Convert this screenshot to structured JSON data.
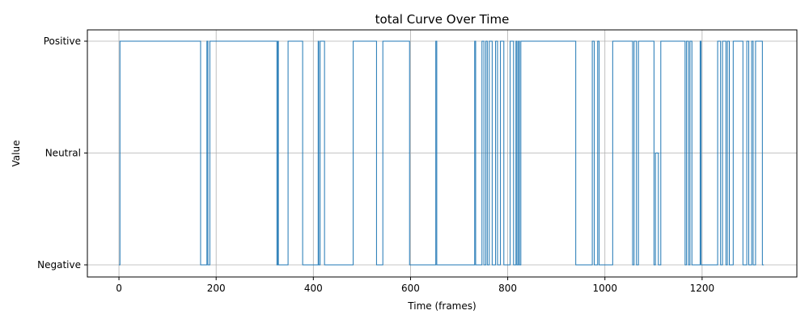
{
  "chart_data": {
    "type": "line",
    "title": "total Curve Over Time",
    "xlabel": "Time (frames)",
    "ylabel": "Value",
    "xlim": [
      -65,
      1395
    ],
    "x_ticks": [
      0,
      200,
      400,
      600,
      800,
      1000,
      1200
    ],
    "y_categories": [
      "Negative",
      "Neutral",
      "Positive"
    ],
    "grid": true,
    "line_color": "#1f77b4",
    "series": [
      {
        "values_encoding": "step segments: [start_frame, end_frame, category_index] where 0=Negative, 1=Neutral, 2=Positive",
        "segments": [
          [
            0,
            2,
            0
          ],
          [
            2,
            168,
            2
          ],
          [
            168,
            181,
            0
          ],
          [
            181,
            183,
            2
          ],
          [
            183,
            187,
            0
          ],
          [
            187,
            325,
            2
          ],
          [
            325,
            327,
            0
          ],
          [
            327,
            328,
            2
          ],
          [
            328,
            348,
            0
          ],
          [
            348,
            378,
            2
          ],
          [
            378,
            410,
            0
          ],
          [
            410,
            411,
            2
          ],
          [
            411,
            414,
            0
          ],
          [
            414,
            423,
            2
          ],
          [
            423,
            482,
            0
          ],
          [
            482,
            530,
            2
          ],
          [
            530,
            543,
            0
          ],
          [
            543,
            598,
            2
          ],
          [
            598,
            652,
            0
          ],
          [
            652,
            654,
            2
          ],
          [
            654,
            732,
            0
          ],
          [
            732,
            734,
            2
          ],
          [
            734,
            747,
            0
          ],
          [
            747,
            751,
            2
          ],
          [
            751,
            755,
            0
          ],
          [
            755,
            758,
            2
          ],
          [
            758,
            762,
            0
          ],
          [
            762,
            768,
            2
          ],
          [
            768,
            775,
            0
          ],
          [
            775,
            779,
            2
          ],
          [
            779,
            785,
            0
          ],
          [
            785,
            792,
            2
          ],
          [
            792,
            805,
            0
          ],
          [
            805,
            812,
            2
          ],
          [
            812,
            817,
            0
          ],
          [
            817,
            819,
            2
          ],
          [
            819,
            822,
            0
          ],
          [
            822,
            824,
            2
          ],
          [
            824,
            827,
            0
          ],
          [
            827,
            940,
            2
          ],
          [
            940,
            974,
            0
          ],
          [
            974,
            978,
            2
          ],
          [
            978,
            985,
            0
          ],
          [
            985,
            988,
            2
          ],
          [
            988,
            1016,
            0
          ],
          [
            1016,
            1057,
            2
          ],
          [
            1057,
            1060,
            0
          ],
          [
            1060,
            1065,
            2
          ],
          [
            1065,
            1069,
            0
          ],
          [
            1069,
            1101,
            2
          ],
          [
            1101,
            1104,
            0
          ],
          [
            1104,
            1110,
            1
          ],
          [
            1110,
            1115,
            0
          ],
          [
            1115,
            1165,
            2
          ],
          [
            1165,
            1168,
            0
          ],
          [
            1168,
            1172,
            2
          ],
          [
            1172,
            1175,
            0
          ],
          [
            1175,
            1179,
            2
          ],
          [
            1179,
            1196,
            0
          ],
          [
            1196,
            1198,
            2
          ],
          [
            1198,
            1232,
            0
          ],
          [
            1232,
            1238,
            2
          ],
          [
            1238,
            1242,
            0
          ],
          [
            1242,
            1249,
            2
          ],
          [
            1249,
            1252,
            0
          ],
          [
            1252,
            1256,
            2
          ],
          [
            1256,
            1264,
            0
          ],
          [
            1264,
            1284,
            2
          ],
          [
            1284,
            1292,
            0
          ],
          [
            1292,
            1296,
            2
          ],
          [
            1296,
            1302,
            0
          ],
          [
            1302,
            1305,
            2
          ],
          [
            1305,
            1310,
            0
          ],
          [
            1310,
            1324,
            2
          ],
          [
            1324,
            1327,
            0
          ]
        ]
      }
    ]
  }
}
